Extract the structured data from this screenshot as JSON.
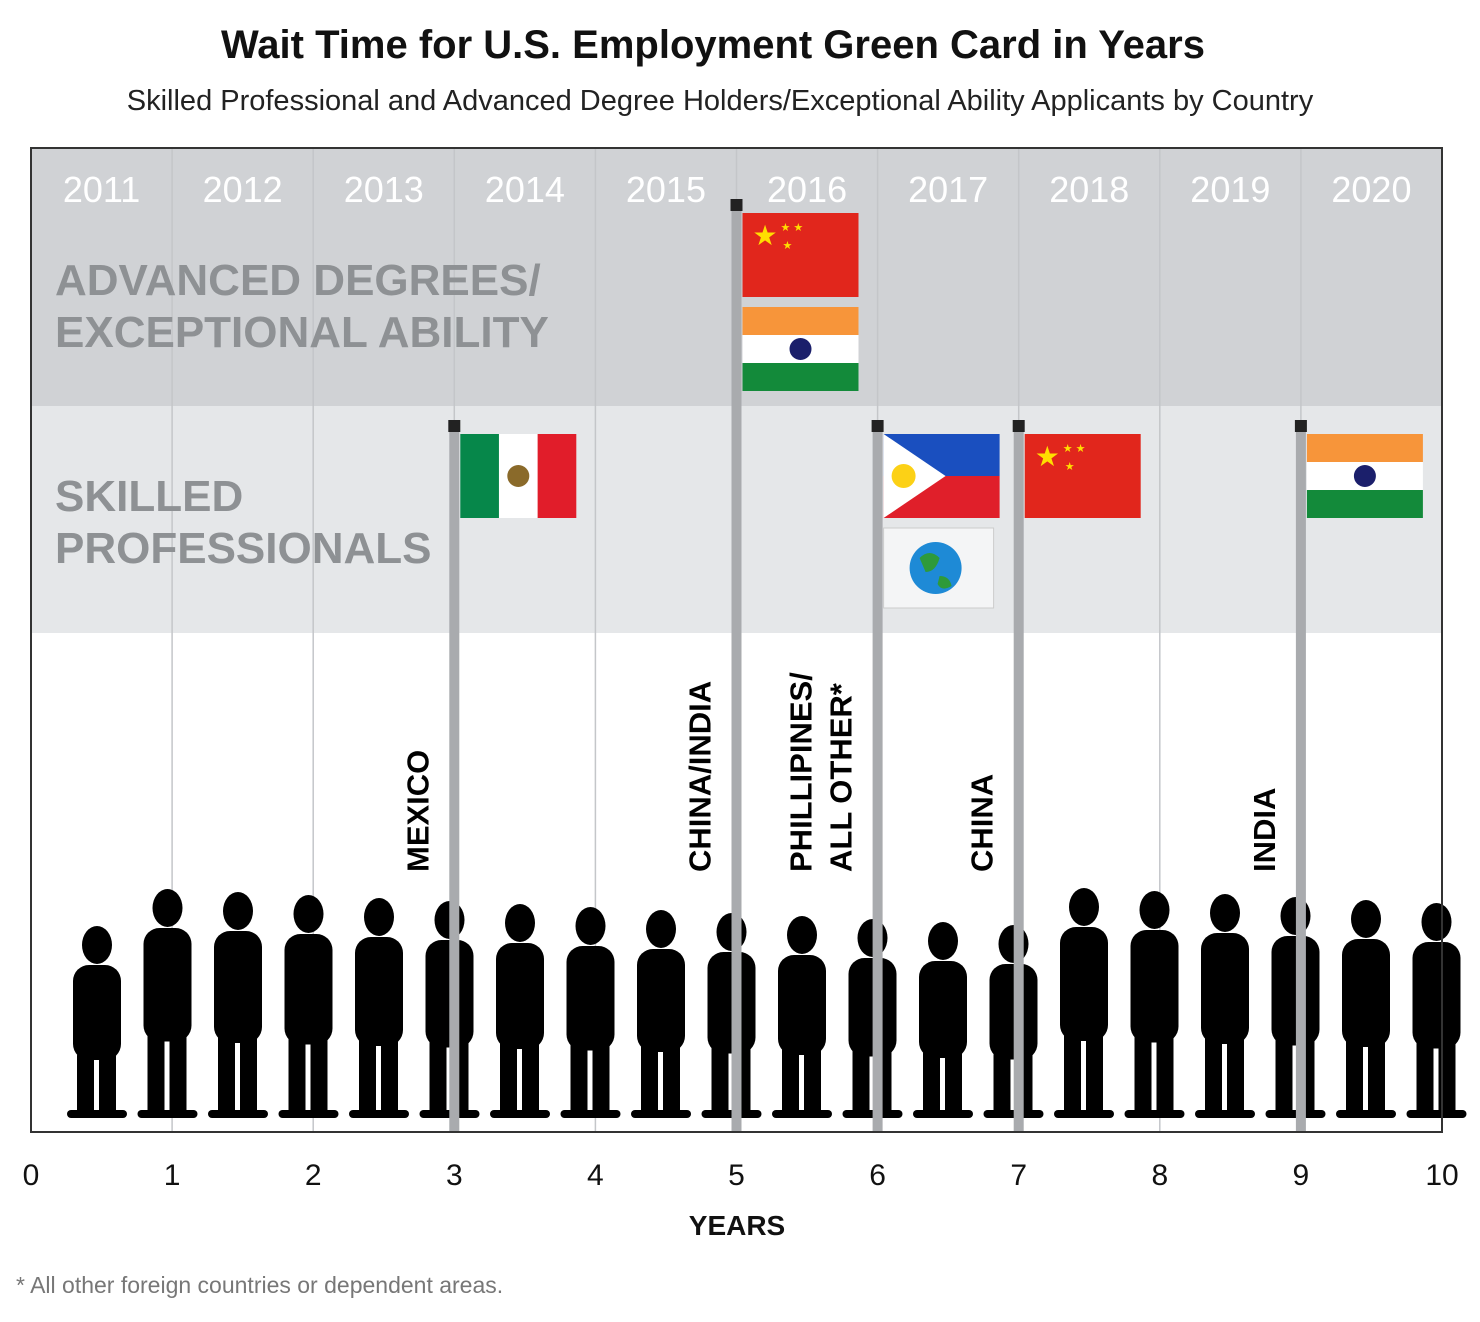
{
  "chart_data": {
    "type": "timeline",
    "title": "Wait Time for U.S. Employment Green Card in Years",
    "subtitle": "Skilled Professional and Advanced Degree Holders/Exceptional Ability Applicants by Country",
    "xlabel": "YEARS",
    "xlim": [
      0,
      10
    ],
    "x_ticks": [
      "0",
      "1",
      "2",
      "3",
      "4",
      "5",
      "6",
      "7",
      "8",
      "9",
      "10"
    ],
    "year_columns": [
      "2011",
      "2012",
      "2013",
      "2014",
      "2015",
      "2016",
      "2017",
      "2018",
      "2019",
      "2020"
    ],
    "bands": [
      {
        "label_line1": "ADVANCED DEGREES/",
        "label_line2": "EXCEPTIONAL ABILITY",
        "color": "#d0d2d5"
      },
      {
        "label_line1": "SKILLED",
        "label_line2": "PROFESSIONALS",
        "color": "#e5e7e9"
      }
    ],
    "markers": [
      {
        "label": "MEXICO",
        "wait_years": 3,
        "category": "Skilled Professionals",
        "flags": [
          "mexico"
        ]
      },
      {
        "label": "CHINA/INDIA",
        "wait_years": 5,
        "category": "Advanced Degrees/Exceptional Ability",
        "flags": [
          "china",
          "india"
        ]
      },
      {
        "label": "PHILLIPINES/",
        "label2": "ALL OTHER*",
        "wait_years": 6,
        "category": "Skilled Professionals",
        "flags": [
          "philippines",
          "globe"
        ]
      },
      {
        "label": "CHINA",
        "wait_years": 7,
        "category": "Skilled Professionals",
        "flags": [
          "china"
        ]
      },
      {
        "label": "INDIA",
        "wait_years": 9,
        "category": "Skilled Professionals",
        "flags": [
          "india"
        ]
      }
    ],
    "footnote": "* All other foreign countries or dependent areas.",
    "grid": true
  }
}
